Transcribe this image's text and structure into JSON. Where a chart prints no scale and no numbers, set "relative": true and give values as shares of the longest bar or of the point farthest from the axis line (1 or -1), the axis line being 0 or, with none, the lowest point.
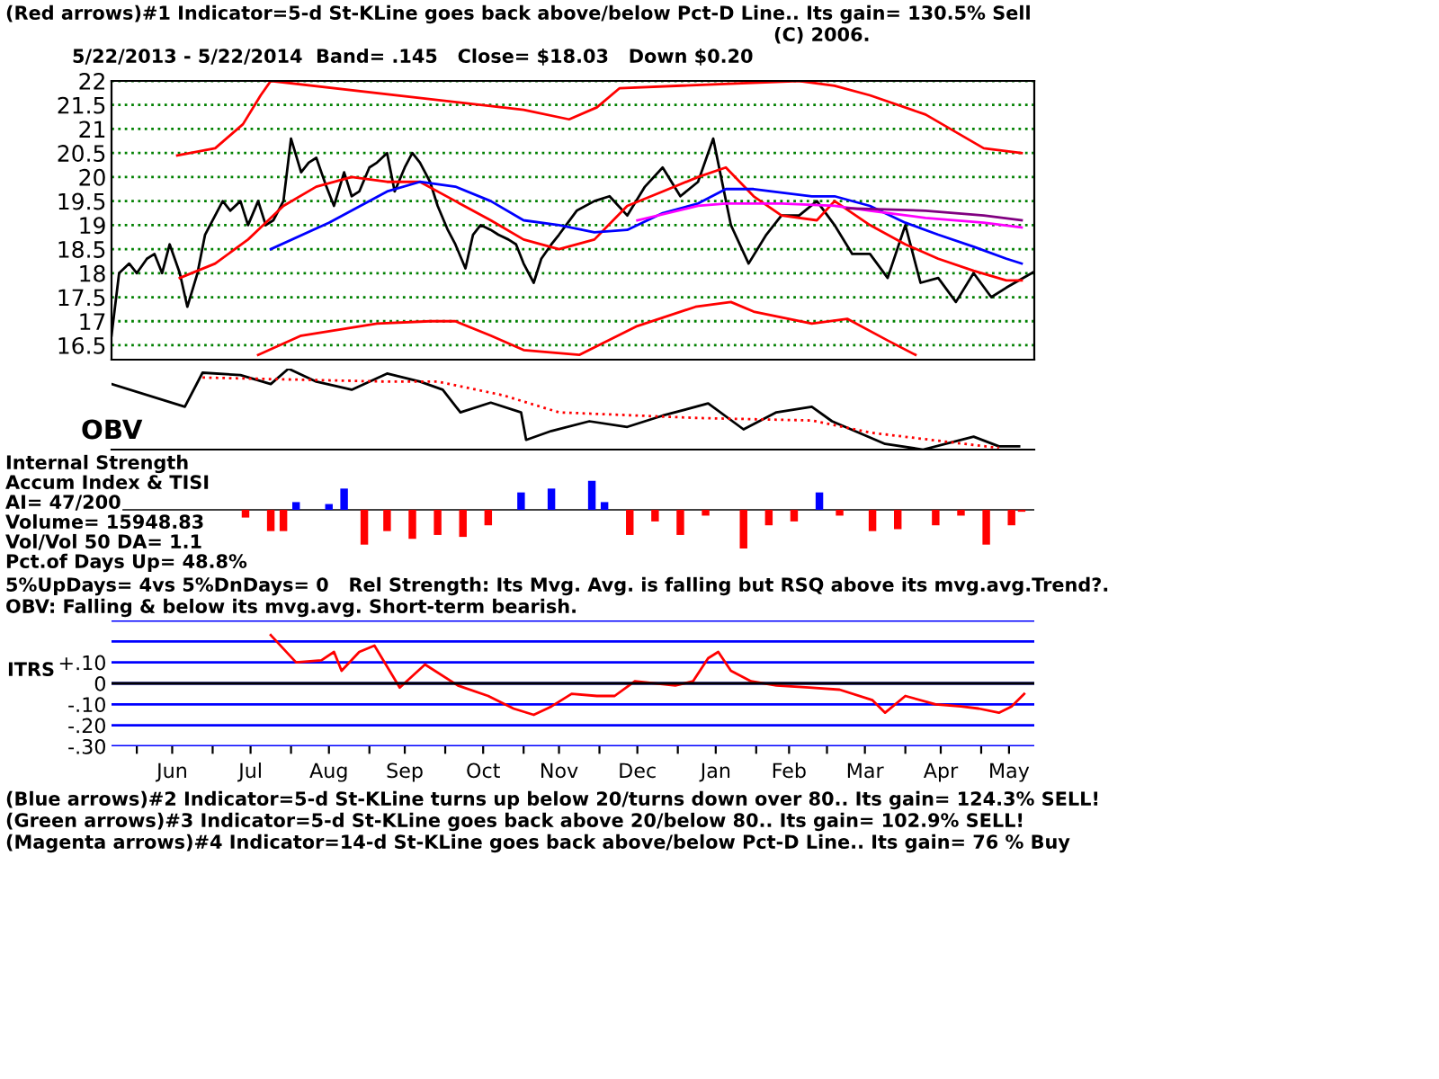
{
  "chart_data": [
    {
      "type": "line",
      "title": "(Red arrows)#1 Indicator=5-d St-KLine goes back above/below Pct-D Line.. Its gain= 130.5% Sell",
      "subtitle": "5/22/2013 - 5/22/2014  Band= .145   Close= $18.03   Down $0.20",
      "annotations": [
        "(C) 2006."
      ],
      "xlim": [
        "2013-05-22",
        "2014-05-22"
      ],
      "ylim": [
        16.2,
        22
      ],
      "yticks": [
        16.5,
        17,
        17.5,
        18,
        18.5,
        19,
        19.5,
        20,
        20.5,
        21,
        21.5,
        22
      ],
      "grid": "y",
      "tick_labels": "y",
      "series": [
        {
          "color": "#000000",
          "x": [
            "2013-05-22",
            "2013-05-25",
            "2013-05-29",
            "2013-06-01",
            "2013-06-05",
            "2013-06-08",
            "2013-06-11",
            "2013-06-14",
            "2013-06-18",
            "2013-06-21",
            "2013-06-25",
            "2013-06-28",
            "2013-07-02",
            "2013-07-05",
            "2013-07-08",
            "2013-07-12",
            "2013-07-15",
            "2013-07-19",
            "2013-07-22",
            "2013-07-25",
            "2013-07-29",
            "2013-08-01",
            "2013-08-05",
            "2013-08-08",
            "2013-08-11",
            "2013-08-15",
            "2013-08-18",
            "2013-08-22",
            "2013-08-25",
            "2013-08-28",
            "2013-09-01",
            "2013-09-04",
            "2013-09-08",
            "2013-09-11",
            "2013-09-15",
            "2013-09-18",
            "2013-09-21",
            "2013-09-25",
            "2013-09-28",
            "2013-10-02",
            "2013-10-05",
            "2013-10-09",
            "2013-10-12",
            "2013-10-15",
            "2013-10-19",
            "2013-10-22",
            "2013-10-26",
            "2013-10-29",
            "2013-11-01",
            "2013-11-05",
            "2013-11-08",
            "2013-11-12",
            "2013-11-15",
            "2013-11-22",
            "2013-11-29",
            "2013-12-05",
            "2013-12-12",
            "2013-12-19",
            "2013-12-26",
            "2014-01-02",
            "2014-01-09",
            "2014-01-15",
            "2014-01-22",
            "2014-01-29",
            "2014-02-05",
            "2014-02-11",
            "2014-02-18",
            "2014-02-25",
            "2014-03-04",
            "2014-03-11",
            "2014-03-18",
            "2014-03-25",
            "2014-04-01",
            "2014-04-07",
            "2014-04-14",
            "2014-04-21",
            "2014-04-28",
            "2014-05-05",
            "2014-05-11",
            "2014-05-22"
          ],
          "values": [
            16.7,
            18.0,
            18.2,
            18.0,
            18.3,
            18.4,
            18.0,
            18.6,
            18.0,
            17.3,
            18.0,
            18.8,
            19.2,
            19.5,
            19.3,
            19.5,
            19.0,
            19.5,
            19.0,
            19.1,
            19.5,
            20.8,
            20.1,
            20.3,
            20.4,
            19.8,
            19.4,
            20.1,
            19.6,
            19.7,
            20.2,
            20.3,
            20.5,
            19.7,
            20.2,
            20.5,
            20.3,
            19.9,
            19.4,
            18.9,
            18.6,
            18.1,
            18.8,
            19.0,
            18.9,
            18.8,
            18.7,
            18.6,
            18.2,
            17.8,
            18.3,
            18.6,
            18.8,
            19.3,
            19.5,
            19.6,
            19.2,
            19.8,
            20.2,
            19.6,
            19.9,
            20.8,
            19.0,
            18.2,
            18.8,
            19.2,
            19.2,
            19.5,
            19.0,
            18.4,
            18.4,
            17.9,
            19.0,
            17.8,
            17.9,
            17.4,
            18.0,
            17.5,
            17.7,
            18.03
          ]
        },
        {
          "color": "#ff0000",
          "x": [
            "2013-06-18",
            "2013-07-02",
            "2013-07-15",
            "2013-07-29",
            "2013-08-11",
            "2013-08-25",
            "2013-09-08",
            "2013-09-21",
            "2013-10-05",
            "2013-10-19",
            "2013-11-01",
            "2013-11-15",
            "2013-11-29",
            "2013-12-12",
            "2013-12-26",
            "2014-01-09",
            "2014-01-20",
            "2014-01-31",
            "2014-02-11",
            "2014-02-25",
            "2014-03-04",
            "2014-03-18",
            "2014-04-01",
            "2014-04-14",
            "2014-04-28",
            "2014-05-11",
            "2014-05-17"
          ],
          "values": [
            17.9,
            18.2,
            18.7,
            19.4,
            19.8,
            20.0,
            19.9,
            19.9,
            19.5,
            19.1,
            18.7,
            18.5,
            18.7,
            19.4,
            19.7,
            20.0,
            20.2,
            19.6,
            19.2,
            19.1,
            19.5,
            19.0,
            18.6,
            18.3,
            18.05,
            17.85,
            17.85
          ]
        },
        {
          "color": "#0000ff",
          "x": [
            "2013-07-24",
            "2013-08-16",
            "2013-09-08",
            "2013-09-21",
            "2013-10-05",
            "2013-10-19",
            "2013-11-01",
            "2013-11-15",
            "2013-11-29",
            "2013-12-12",
            "2013-12-26",
            "2014-01-09",
            "2014-01-20",
            "2014-01-31",
            "2014-02-23",
            "2014-03-04",
            "2014-03-18",
            "2014-04-01",
            "2014-04-14",
            "2014-04-28",
            "2014-05-11",
            "2014-05-17"
          ],
          "values": [
            18.5,
            19.05,
            19.7,
            19.9,
            19.8,
            19.5,
            19.1,
            19.0,
            18.85,
            18.9,
            19.25,
            19.45,
            19.75,
            19.75,
            19.6,
            19.6,
            19.4,
            19.05,
            18.8,
            18.55,
            18.3,
            18.2
          ]
        },
        {
          "color": "#ff00ff",
          "x": [
            "2013-12-16",
            "2014-01-09",
            "2014-01-20",
            "2014-02-11",
            "2014-03-04",
            "2014-03-18",
            "2014-04-09",
            "2014-05-02",
            "2014-05-17"
          ],
          "values": [
            19.1,
            19.4,
            19.45,
            19.45,
            19.4,
            19.3,
            19.15,
            19.05,
            18.95
          ]
        },
        {
          "color": "#800080",
          "x": [
            "2014-03-09",
            "2014-04-09",
            "2014-05-02",
            "2014-05-17"
          ],
          "values": [
            19.35,
            19.3,
            19.2,
            19.1
          ]
        },
        {
          "color": "#ff0000",
          "x": [
            "2013-06-17",
            "2013-07-02",
            "2013-07-13",
            "2013-07-20",
            "2013-07-24",
            "2013-11-01",
            "2013-11-19",
            "2013-11-30",
            "2013-12-09",
            "2014-02-18",
            "2014-03-04",
            "2014-03-18",
            "2014-04-09",
            "2014-05-02",
            "2014-05-17"
          ],
          "values": [
            20.45,
            20.6,
            21.1,
            21.7,
            22.0,
            21.4,
            21.2,
            21.45,
            21.85,
            22.0,
            21.9,
            21.7,
            21.3,
            20.6,
            20.5
          ]
        },
        {
          "color": "#ff0000",
          "x": [
            "2013-07-19",
            "2013-08-05",
            "2013-09-04",
            "2013-09-25",
            "2013-10-05",
            "2013-10-19",
            "2013-11-01",
            "2013-11-23",
            "2013-12-16",
            "2014-01-08",
            "2014-01-22",
            "2014-01-31",
            "2014-02-23",
            "2014-03-09",
            "2014-03-25",
            "2014-04-05"
          ],
          "values": [
            16.3,
            16.7,
            16.95,
            17.0,
            17.0,
            16.7,
            16.4,
            16.3,
            16.9,
            17.3,
            17.4,
            17.2,
            16.95,
            17.05,
            16.6,
            16.3
          ]
        }
      ]
    },
    {
      "type": "line",
      "relative": true,
      "annotations": [
        "OBV"
      ],
      "xlim": [
        "2013-05-22",
        "2014-05-22"
      ],
      "tick_labels": false,
      "series": [
        {
          "color": "#000000",
          "x": [
            "2013-05-22",
            "2013-06-20",
            "2013-06-27",
            "2013-07-12",
            "2013-07-24",
            "2013-07-31",
            "2013-08-11",
            "2013-08-25",
            "2013-09-08",
            "2013-09-21",
            "2013-09-30",
            "2013-10-07",
            "2013-10-19",
            "2013-10-31",
            "2013-11-02",
            "2013-11-12",
            "2013-11-27",
            "2013-12-12",
            "2013-12-26",
            "2014-01-13",
            "2014-01-27",
            "2014-02-09",
            "2014-02-23",
            "2014-03-03",
            "2014-03-24",
            "2014-04-08",
            "2014-04-28",
            "2014-05-08",
            "2014-05-16"
          ],
          "values": [
            0.81,
            0.53,
            0.95,
            0.92,
            0.81,
            1.0,
            0.84,
            0.74,
            0.94,
            0.84,
            0.74,
            0.46,
            0.58,
            0.46,
            0.12,
            0.23,
            0.35,
            0.28,
            0.42,
            0.57,
            0.25,
            0.46,
            0.53,
            0.35,
            0.07,
            0,
            0.16,
            0.04,
            0.04
          ]
        },
        {
          "color": "#ff0000",
          "line_style": "dotted",
          "x": [
            "2013-06-27",
            "2013-09-08",
            "2013-09-28",
            "2013-10-24",
            "2013-11-15",
            "2014-01-09",
            "2014-02-23",
            "2014-03-18",
            "2014-05-08"
          ],
          "values": [
            0.89,
            0.84,
            0.84,
            0.67,
            0.46,
            0.39,
            0.36,
            0.21,
            0.02
          ]
        }
      ]
    },
    {
      "type": "bar",
      "relative": true,
      "annotations": [
        "Internal Strength",
        "Accum Index & TISI",
        "AI= 47/200",
        "Volume= 15948.83",
        "Vol/Vol 50 DA= 1.1",
        "Pct.of Days Up= 48.8%",
        "5%UpDays= 4vs 5%DnDays= 0   Rel Strength: Its Mvg. Avg. is falling but RSQ above its mvg.avg.Trend?.",
        "OBV: Falling & below its mvg.avg. Short-term bearish."
      ],
      "xlim": [
        "2013-05-22",
        "2014-05-22"
      ],
      "tick_labels": false,
      "x": [
        "2013-07-14",
        "2013-07-24",
        "2013-07-29",
        "2013-08-03",
        "2013-08-16",
        "2013-08-22",
        "2013-08-30",
        "2013-09-08",
        "2013-09-18",
        "2013-09-28",
        "2013-10-08",
        "2013-10-18",
        "2013-10-31",
        "2013-11-12",
        "2013-11-28",
        "2013-12-03",
        "2013-12-13",
        "2013-12-23",
        "2014-01-02",
        "2014-01-12",
        "2014-01-27",
        "2014-02-06",
        "2014-02-16",
        "2014-02-26",
        "2014-03-06",
        "2014-03-19",
        "2014-03-29",
        "2014-04-13",
        "2014-04-23",
        "2014-05-03",
        "2014-05-13",
        "2014-05-17"
      ],
      "values": [
        -0.2,
        -0.55,
        -0.55,
        0.2,
        0.15,
        0.55,
        -0.9,
        -0.55,
        -0.75,
        -0.65,
        -0.7,
        -0.4,
        0.45,
        0.55,
        0.75,
        0.2,
        -0.65,
        -0.3,
        -0.65,
        -0.15,
        -1.0,
        -0.4,
        -0.3,
        0.45,
        -0.15,
        -0.55,
        -0.5,
        -0.4,
        -0.15,
        -0.9,
        -0.4,
        -0.05
      ],
      "colors": [
        "#ff0000",
        "#ff0000",
        "#ff0000",
        "#0000ff",
        "#0000ff",
        "#0000ff",
        "#ff0000",
        "#ff0000",
        "#ff0000",
        "#ff0000",
        "#ff0000",
        "#ff0000",
        "#0000ff",
        "#0000ff",
        "#0000ff",
        "#0000ff",
        "#ff0000",
        "#ff0000",
        "#ff0000",
        "#ff0000",
        "#ff0000",
        "#ff0000",
        "#ff0000",
        "#0000ff",
        "#ff0000",
        "#ff0000",
        "#ff0000",
        "#ff0000",
        "#ff0000",
        "#ff0000",
        "#ff0000",
        "#ff0000"
      ]
    },
    {
      "type": "line",
      "ylabel": "ITRS",
      "annotations": [
        "(Blue arrows)#2 Indicator=5-d St-KLine turns up below 20/turns down over 80.. Its gain= 124.3% SELL!",
        "(Green arrows)#3 Indicator=5-d St-KLine goes back above 20/below 80.. Its gain= 102.9% SELL!",
        "(Magenta arrows)#4 Indicator=14-d St-KLine goes back above/below Pct-D Line.. Its gain= 76 % Buy"
      ],
      "xlim": [
        "2013-05-22",
        "2014-05-22"
      ],
      "ylim": [
        -0.3,
        0.3
      ],
      "yticks": [
        {
          "value": 0.3,
          "label": null
        },
        {
          "value": 0.2,
          "label": null
        },
        {
          "value": 0.1,
          "label": "+.10"
        },
        0,
        {
          "value": -0.1,
          "label": "-.10"
        },
        {
          "value": -0.2,
          "label": "-.20"
        },
        {
          "value": -0.3,
          "label": "-.30"
        }
      ],
      "xticks": [
        {
          "value": "2013-06-01",
          "label": null
        },
        {
          "value": "2013-06-15",
          "label": "Jun"
        },
        {
          "value": "2013-07-01",
          "label": null
        },
        {
          "value": "2013-07-16",
          "label": "Jul"
        },
        {
          "value": "2013-08-01",
          "label": null
        },
        {
          "value": "2013-08-16",
          "label": "Aug"
        },
        {
          "value": "2013-09-01",
          "label": null
        },
        {
          "value": "2013-09-15",
          "label": "Sep"
        },
        {
          "value": "2013-10-01",
          "label": null
        },
        {
          "value": "2013-10-16",
          "label": "Oct"
        },
        {
          "value": "2013-11-01",
          "label": null
        },
        {
          "value": "2013-11-15",
          "label": "Nov"
        },
        {
          "value": "2013-12-01",
          "label": null
        },
        {
          "value": "2013-12-16",
          "label": "Dec"
        },
        {
          "value": "2014-01-01",
          "label": null
        },
        {
          "value": "2014-01-16",
          "label": "Jan"
        },
        {
          "value": "2014-02-01",
          "label": null
        },
        {
          "value": "2014-02-14",
          "label": "Feb"
        },
        {
          "value": "2014-03-01",
          "label": null
        },
        {
          "value": "2014-03-16",
          "label": "Mar"
        },
        {
          "value": "2014-04-01",
          "label": null
        },
        {
          "value": "2014-04-15",
          "label": "Apr"
        },
        {
          "value": "2014-05-01",
          "label": null
        },
        {
          "value": "2014-05-12",
          "label": "May"
        }
      ],
      "grid": "y",
      "ref_lines": [
        {
          "axis": "y",
          "value": 0,
          "color": "#000000"
        }
      ],
      "series": [
        {
          "color": "#ff0000",
          "x": [
            "2013-07-24",
            "2013-08-03",
            "2013-08-13",
            "2013-08-18",
            "2013-08-21",
            "2013-08-28",
            "2013-09-03",
            "2013-09-13",
            "2013-09-23",
            "2013-10-06",
            "2013-10-18",
            "2013-10-28",
            "2013-11-05",
            "2013-11-12",
            "2013-11-20",
            "2013-11-30",
            "2013-12-07",
            "2013-12-15",
            "2013-12-31",
            "2014-01-07",
            "2014-01-13",
            "2014-01-17",
            "2014-01-22",
            "2014-01-30",
            "2014-02-09",
            "2014-02-22",
            "2014-03-06",
            "2014-03-19",
            "2014-03-24",
            "2014-04-01",
            "2014-04-13",
            "2014-04-23",
            "2014-04-30",
            "2014-05-08",
            "2014-05-13",
            "2014-05-18"
          ],
          "values": [
            0.23,
            0.1,
            0.11,
            0.15,
            0.06,
            0.15,
            0.18,
            -0.02,
            0.09,
            -0.01,
            -0.06,
            -0.12,
            -0.15,
            -0.11,
            -0.05,
            -0.06,
            -0.06,
            0.01,
            -0.01,
            0.01,
            0.12,
            0.15,
            0.06,
            0.01,
            -0.01,
            -0.02,
            -0.03,
            -0.08,
            -0.14,
            -0.06,
            -0.1,
            -0.11,
            -0.12,
            -0.14,
            -0.11,
            -0.05
          ]
        }
      ]
    }
  ]
}
